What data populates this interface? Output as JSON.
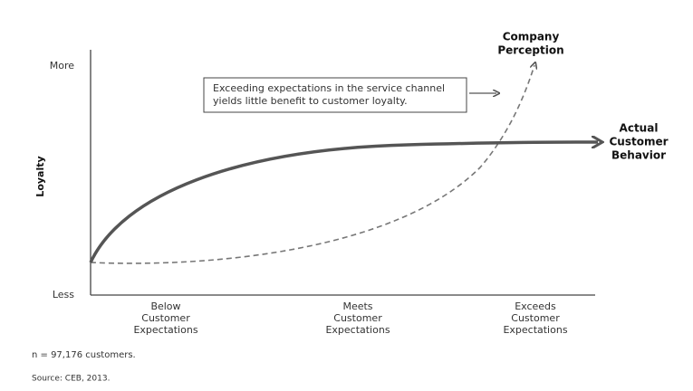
{
  "axis": {
    "y_label": "Loyalty",
    "y_top": "More",
    "y_bottom": "Less",
    "x_labels": [
      [
        "Below",
        "Customer",
        "Expectations"
      ],
      [
        "Meets",
        "Customer",
        "Expectations"
      ],
      [
        "Exceeds",
        "Customer",
        "Expectations"
      ]
    ]
  },
  "annotations": {
    "company_perception": [
      "Company",
      "Perception"
    ],
    "actual_behavior": [
      "Actual",
      "Customer",
      "Behavior"
    ],
    "callout": [
      "Exceeding expectations in the service channel",
      "yields little benefit to customer loyalty."
    ]
  },
  "footnotes": {
    "sample": "n = 97,176 customers.",
    "source": "Source: CEB, 2013."
  }
}
